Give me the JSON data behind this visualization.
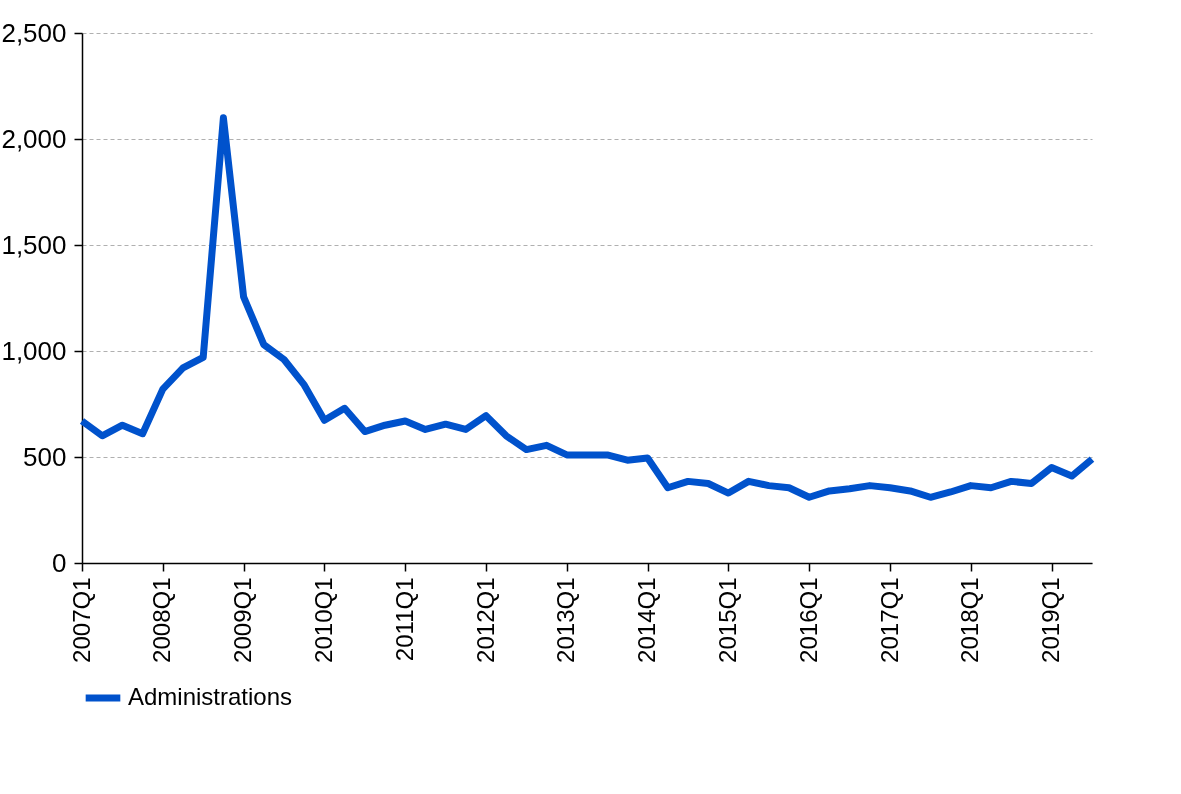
{
  "chart_data": {
    "type": "line",
    "categories": [
      "2007Q1",
      null,
      null,
      null,
      "2008Q1",
      null,
      null,
      null,
      "2009Q1",
      null,
      null,
      null,
      "2010Q1",
      null,
      null,
      null,
      "2011Q1",
      null,
      null,
      null,
      "2012Q1",
      null,
      null,
      null,
      "2013Q1",
      null,
      null,
      null,
      "2014Q1",
      null,
      null,
      null,
      "2015Q1",
      null,
      null,
      null,
      "2016Q1",
      null,
      null,
      null,
      "2017Q1",
      null,
      null,
      null,
      "2018Q1",
      null,
      null,
      null,
      "2019Q1",
      null,
      null
    ],
    "series": [
      {
        "name": "Administrations",
        "color": "#0052cc",
        "values": [
          670,
          600,
          650,
          610,
          820,
          920,
          970,
          2100,
          1255,
          1030,
          960,
          840,
          673,
          730,
          620,
          650,
          670,
          630,
          655,
          630,
          695,
          600,
          535,
          555,
          510,
          510,
          510,
          485,
          495,
          355,
          385,
          375,
          330,
          385,
          365,
          355,
          310,
          340,
          350,
          365,
          355,
          340,
          310,
          335,
          365,
          355,
          385,
          375,
          450,
          410,
          490
        ]
      }
    ],
    "ylim": [
      0,
      2500
    ],
    "yticks": [
      0,
      {
        "value": 500,
        "label": "500"
      },
      {
        "value": 1000,
        "label": "1,000"
      },
      {
        "value": 1500,
        "label": "1,500"
      },
      {
        "value": 2000,
        "label": "2,000"
      },
      {
        "value": 2500,
        "label": "2,500"
      }
    ],
    "grid": "y",
    "legend": "bottom",
    "marker": "none",
    "line_style": "solid"
  }
}
